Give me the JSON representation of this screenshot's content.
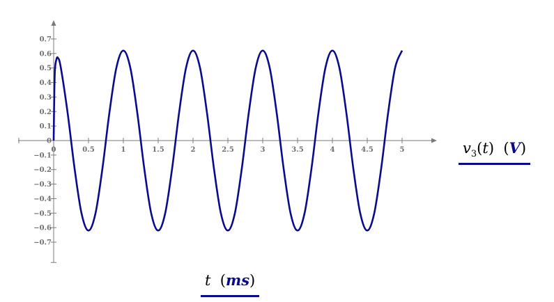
{
  "chart_data": {
    "type": "line",
    "xlabel": {
      "var": "t",
      "unit": "ms"
    },
    "ylabel": {
      "var": "v",
      "sub": "3",
      "arg": "t",
      "unit": "V"
    },
    "xlim": [
      -0.5,
      5.5
    ],
    "ylim": [
      -0.84,
      0.82
    ],
    "xticks": [
      0,
      0.5,
      1,
      1.5,
      2,
      2.5,
      3,
      3.5,
      4,
      4.5,
      5
    ],
    "xtick_labels": [
      "0",
      "0.5",
      "1",
      "1.5",
      "2",
      "2.5",
      "3",
      "3.5",
      "4",
      "4.5",
      "5"
    ],
    "yticks": [
      0.7,
      0.6,
      0.5,
      0.4,
      0.3,
      0.2,
      0.1,
      0,
      -0.1,
      -0.2,
      -0.3,
      -0.4,
      -0.5,
      -0.6,
      -0.7
    ],
    "ytick_labels": [
      "0.7",
      "0.6",
      "0.5",
      "0.4",
      "0.3",
      "0.2",
      "0.1",
      "0",
      "−0.1",
      "−0.2",
      "−0.3",
      "−0.4",
      "−0.5",
      "−0.6",
      "−0.7"
    ],
    "grid": false,
    "line_color": "#0a0a8c",
    "axis_color": "#7a7a7a",
    "series": [
      {
        "x": [
          0,
          0.01,
          0.02,
          0.04,
          0.06,
          0.1,
          0.2,
          0.3,
          0.4,
          0.5,
          0.6,
          0.7,
          0.8,
          0.9,
          1.0,
          1.1,
          1.2,
          1.3,
          1.4,
          1.5,
          1.6,
          1.7,
          1.8,
          1.9,
          2.0,
          2.1,
          2.2,
          2.3,
          2.4,
          2.5,
          2.6,
          2.7,
          2.8,
          2.9,
          3.0,
          3.1,
          3.2,
          3.3,
          3.4,
          3.5,
          3.6,
          3.7,
          3.8,
          3.9,
          4.0,
          4.1,
          4.2,
          4.3,
          4.4,
          4.5,
          4.6,
          4.7,
          4.8,
          4.9,
          5.0
        ],
        "y": [
          0,
          0.35,
          0.5,
          0.56,
          0.57,
          0.51,
          0.192,
          -0.192,
          -0.502,
          -0.62,
          -0.502,
          -0.192,
          0.192,
          0.502,
          0.62,
          0.502,
          0.192,
          -0.192,
          -0.502,
          -0.62,
          -0.502,
          -0.192,
          0.192,
          0.502,
          0.62,
          0.502,
          0.192,
          -0.192,
          -0.502,
          -0.62,
          -0.502,
          -0.192,
          0.192,
          0.502,
          0.62,
          0.502,
          0.192,
          -0.192,
          -0.502,
          -0.62,
          -0.502,
          -0.192,
          0.192,
          0.502,
          0.62,
          0.502,
          0.192,
          -0.192,
          -0.502,
          -0.62,
          -0.502,
          -0.192,
          0.192,
          0.502,
          0.62
        ]
      }
    ]
  }
}
